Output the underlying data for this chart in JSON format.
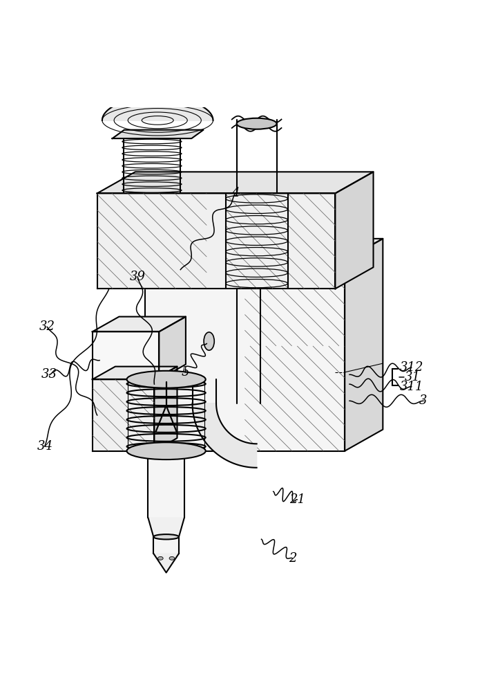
{
  "bg_color": "#ffffff",
  "line_color": "#000000",
  "figsize": [
    6.95,
    10.0
  ],
  "dpi": 100
}
